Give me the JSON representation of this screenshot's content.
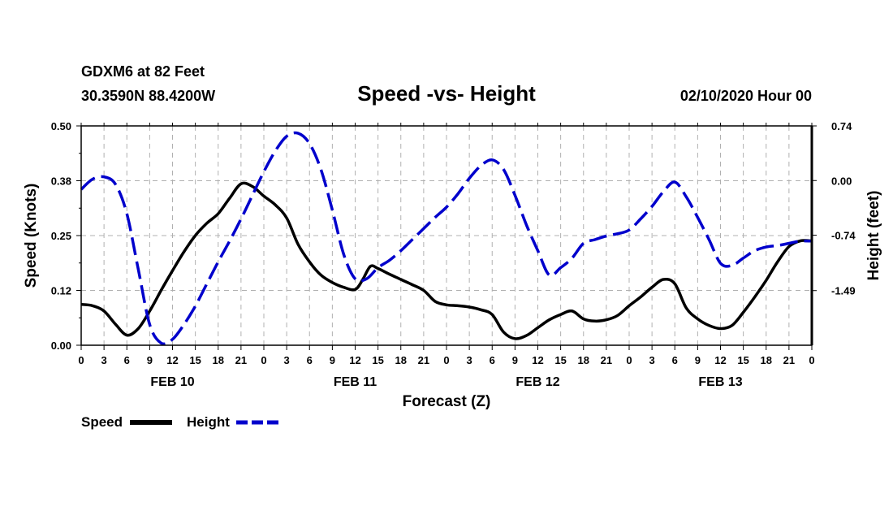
{
  "header": {
    "station": "GDXM6 at 82 Feet",
    "coords": "30.3590N 88.4200W",
    "title": "Speed -vs- Height",
    "run": "02/10/2020 Hour 00"
  },
  "legend": {
    "speed_label": "Speed",
    "height_label": "Height"
  },
  "chart_data": {
    "type": "line",
    "title": "Speed -vs- Height",
    "xlabel": "Forecast (Z)",
    "ylabel_left": "Speed (Knots)",
    "ylabel_right": "Height (feet)",
    "x_range_hours": [
      0,
      96
    ],
    "y_left_range": [
      0,
      0.5
    ],
    "y_right_range": [
      -2.23,
      0.74
    ],
    "y_left_ticks": [
      "0.00",
      "0.12",
      "0.25",
      "0.38",
      "0.50"
    ],
    "y_left_tick_values": [
      0,
      0.125,
      0.25,
      0.375,
      0.5
    ],
    "y_right_ticks": [
      "-1.49",
      "-0.74",
      "0.00",
      "0.74"
    ],
    "y_right_tick_values": [
      -1.49,
      -0.74,
      0.0,
      0.74
    ],
    "x_tick_labels": [
      "0",
      "3",
      "6",
      "9",
      "12",
      "15",
      "18",
      "21",
      "0",
      "3",
      "6",
      "9",
      "12",
      "15",
      "18",
      "21",
      "0",
      "3",
      "6",
      "9",
      "12",
      "15",
      "18",
      "21",
      "0",
      "3",
      "6",
      "9",
      "12",
      "15",
      "18",
      "21",
      "0"
    ],
    "day_labels": [
      {
        "label": "FEB 10",
        "hour": 12
      },
      {
        "label": "FEB 11",
        "hour": 36
      },
      {
        "label": "FEB 12",
        "hour": 60
      },
      {
        "label": "FEB 13",
        "hour": 84
      }
    ],
    "grid": true,
    "series": [
      {
        "name": "Speed",
        "axis": "left",
        "color": "#000000",
        "style": "solid",
        "hours": [
          0,
          1.5,
          3,
          4.5,
          6,
          7.5,
          9,
          10.5,
          12,
          13.5,
          15,
          16.5,
          18,
          19.5,
          21,
          22.5,
          24,
          25.5,
          27,
          28.5,
          30,
          31.5,
          33,
          34.5,
          36,
          37,
          38,
          39,
          40.5,
          42,
          43.5,
          45,
          46.5,
          48,
          49.5,
          51,
          52.5,
          54,
          55.5,
          57,
          58.5,
          60,
          61.5,
          63,
          64.5,
          66,
          67.5,
          69,
          70.5,
          72,
          73.5,
          75,
          76.5,
          78,
          79.5,
          81,
          82.5,
          84,
          85.5,
          87,
          88.5,
          90,
          91.5,
          93,
          94.5,
          96
        ],
        "values": [
          0.093,
          0.09,
          0.078,
          0.048,
          0.023,
          0.038,
          0.078,
          0.125,
          0.17,
          0.213,
          0.25,
          0.278,
          0.3,
          0.335,
          0.368,
          0.362,
          0.34,
          0.32,
          0.29,
          0.23,
          0.19,
          0.16,
          0.143,
          0.132,
          0.127,
          0.15,
          0.18,
          0.175,
          0.162,
          0.15,
          0.138,
          0.125,
          0.1,
          0.092,
          0.09,
          0.087,
          0.081,
          0.07,
          0.03,
          0.015,
          0.022,
          0.04,
          0.058,
          0.07,
          0.078,
          0.06,
          0.055,
          0.058,
          0.068,
          0.09,
          0.11,
          0.132,
          0.15,
          0.14,
          0.085,
          0.06,
          0.045,
          0.038,
          0.045,
          0.075,
          0.11,
          0.148,
          0.19,
          0.225,
          0.238,
          0.238
        ]
      },
      {
        "name": "Height",
        "axis": "right",
        "color": "#0000cc",
        "style": "dashed",
        "hours": [
          0,
          1.5,
          3,
          4.5,
          6,
          7.5,
          9,
          10.5,
          12,
          13.5,
          15,
          16.5,
          18,
          19.5,
          21,
          22.5,
          24,
          25.5,
          27,
          28.5,
          30,
          31.5,
          33,
          34.5,
          36,
          37.5,
          39,
          40.5,
          42,
          43.5,
          45,
          46.5,
          48,
          49.5,
          51,
          52.5,
          54,
          55.5,
          57,
          58.5,
          60,
          61.5,
          63,
          64.5,
          66,
          67.5,
          69,
          70.5,
          72,
          73.5,
          75,
          76.5,
          78,
          79.5,
          81,
          82.5,
          84,
          85.5,
          87,
          88.5,
          90,
          91.5,
          93,
          94.5,
          96
        ],
        "values": [
          -0.12,
          0.02,
          0.05,
          -0.05,
          -0.45,
          -1.2,
          -1.95,
          -2.2,
          -2.15,
          -1.95,
          -1.7,
          -1.4,
          -1.1,
          -0.82,
          -0.52,
          -0.2,
          0.12,
          0.4,
          0.6,
          0.64,
          0.5,
          0.15,
          -0.4,
          -1.0,
          -1.33,
          -1.33,
          -1.18,
          -1.08,
          -0.95,
          -0.8,
          -0.65,
          -0.5,
          -0.36,
          -0.18,
          0.03,
          0.2,
          0.28,
          0.15,
          -0.2,
          -0.6,
          -0.95,
          -1.28,
          -1.18,
          -1.05,
          -0.85,
          -0.8,
          -0.75,
          -0.72,
          -0.67,
          -0.52,
          -0.35,
          -0.15,
          -0.02,
          -0.22,
          -0.5,
          -0.8,
          -1.12,
          -1.15,
          -1.05,
          -0.95,
          -0.9,
          -0.88,
          -0.85,
          -0.82,
          -0.82
        ]
      }
    ]
  }
}
